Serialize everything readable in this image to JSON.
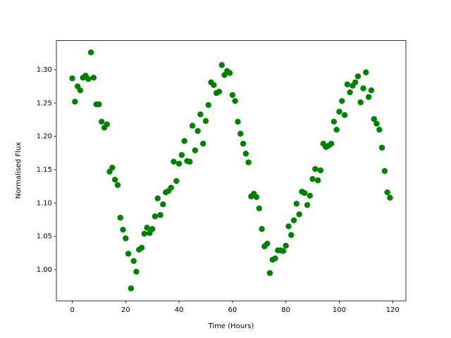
{
  "chart_data": {
    "type": "scatter",
    "xlabel": "Time (Hours)",
    "ylabel": "Normalised Flux",
    "color": "#008000",
    "x": [
      0,
      1,
      2,
      3,
      4,
      5,
      6,
      7,
      8,
      9,
      10,
      11,
      12,
      13,
      14,
      15,
      16,
      17,
      18,
      19,
      20,
      21,
      22,
      23,
      24,
      25,
      26,
      27,
      28,
      29,
      30,
      31,
      32,
      33,
      34,
      35,
      36,
      37,
      38,
      39,
      40,
      41,
      42,
      43,
      44,
      45,
      46,
      47,
      48,
      49,
      50,
      51,
      52,
      53,
      54,
      55,
      56,
      57,
      58,
      59,
      60,
      61,
      62,
      63,
      64,
      65,
      66,
      67,
      68,
      69,
      70,
      71,
      72,
      73,
      74,
      75,
      76,
      77,
      78,
      79,
      80,
      81,
      82,
      83,
      84,
      85,
      86,
      87,
      88,
      89,
      90,
      91,
      92,
      93,
      94,
      95,
      96,
      97,
      98,
      99,
      100,
      101,
      102,
      103,
      104,
      105,
      106,
      107,
      108,
      109,
      110,
      111,
      112,
      113,
      114,
      115,
      116,
      117,
      118,
      119
    ],
    "values": [
      1.287,
      1.252,
      1.275,
      1.269,
      1.288,
      1.291,
      1.286,
      1.326,
      1.288,
      1.248,
      1.248,
      1.222,
      1.213,
      1.218,
      1.147,
      1.153,
      1.135,
      1.127,
      1.078,
      1.06,
      1.047,
      1.024,
      0.972,
      1.013,
      0.997,
      1.03,
      1.033,
      1.054,
      1.063,
      1.055,
      1.061,
      1.08,
      1.107,
      1.082,
      1.098,
      1.116,
      1.118,
      1.123,
      1.162,
      1.133,
      1.159,
      1.172,
      1.193,
      1.163,
      1.162,
      1.216,
      1.179,
      1.208,
      1.233,
      1.189,
      1.223,
      1.247,
      1.281,
      1.277,
      1.265,
      1.267,
      1.307,
      1.292,
      1.298,
      1.295,
      1.262,
      1.253,
      1.222,
      1.204,
      1.189,
      1.174,
      1.161,
      1.11,
      1.114,
      1.109,
      1.092,
      1.061,
      1.035,
      1.039,
      0.995,
      1.015,
      1.017,
      1.029,
      1.029,
      1.028,
      1.036,
      1.065,
      1.052,
      1.074,
      1.099,
      1.083,
      1.117,
      1.115,
      1.097,
      1.111,
      1.136,
      1.151,
      1.134,
      1.149,
      1.189,
      1.184,
      1.186,
      1.189,
      1.222,
      1.21,
      1.237,
      1.253,
      1.232,
      1.278,
      1.266,
      1.276,
      1.281,
      1.29,
      1.251,
      1.272,
      1.296,
      1.259,
      1.269,
      1.226,
      1.219,
      1.21,
      1.183,
      1.148,
      1.116,
      1.108
    ],
    "xlim": [
      -5.95,
      124.95
    ],
    "xticks": [
      0,
      20,
      40,
      60,
      80,
      100,
      120
    ],
    "ylim": [
      0.9533,
      1.3437
    ],
    "yticks": [
      {
        "value": 1.0,
        "label": "1.00"
      },
      1.05,
      {
        "value": 1.1,
        "label": "1.10"
      },
      1.15,
      {
        "value": 1.2,
        "label": "1.20"
      },
      1.25,
      {
        "value": 1.3,
        "label": "1.30"
      }
    ]
  }
}
